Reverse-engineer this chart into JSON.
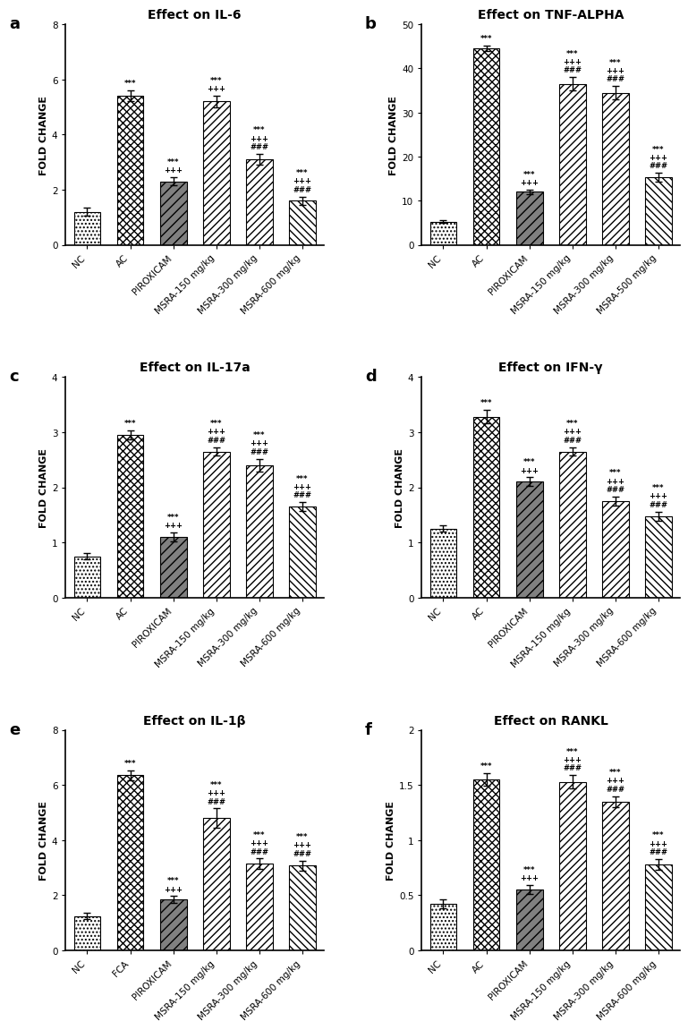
{
  "panels": [
    {
      "label": "a",
      "title": "Effect on IL-6",
      "ylim": [
        0,
        8
      ],
      "yticks": [
        0,
        2,
        4,
        6,
        8
      ],
      "categories": [
        "NC",
        "AC",
        "PIROXICAM",
        "MSRA-150 mg/kg",
        "MSRA-300 mg/kg",
        "MSRA-600 mg/kg"
      ],
      "values": [
        1.2,
        5.4,
        2.3,
        5.2,
        3.1,
        1.6
      ],
      "errors": [
        0.15,
        0.2,
        0.15,
        0.2,
        0.2,
        0.15
      ],
      "annotations": [
        "",
        "***",
        "+++\n***",
        "+++\n***",
        "###\n+++\n***",
        "###\n+++\n***"
      ]
    },
    {
      "label": "b",
      "title": "Effect on TNF-ALPHA",
      "ylim": [
        0,
        50
      ],
      "yticks": [
        0,
        10,
        20,
        30,
        40,
        50
      ],
      "categories": [
        "NC",
        "AC",
        "PIROXICAM",
        "MSRA-150 mg/kg",
        "MSRA-300 mg/kg",
        "MSRA-500 mg/kg"
      ],
      "values": [
        5.2,
        44.5,
        12.0,
        36.5,
        34.5,
        15.3
      ],
      "errors": [
        0.3,
        0.6,
        0.5,
        1.5,
        1.5,
        1.0
      ],
      "annotations": [
        "",
        "***",
        "+++\n***",
        "###\n+++\n***",
        "###\n+++\n***",
        "###\n+++\n***"
      ]
    },
    {
      "label": "c",
      "title": "Effect on IL-17a",
      "ylim": [
        0,
        4
      ],
      "yticks": [
        0,
        1,
        2,
        3,
        4
      ],
      "categories": [
        "NC",
        "AC",
        "PIROXICAM",
        "MSRA-150 mg/kg",
        "MSRA-300 mg/kg",
        "MSRA-600 mg/kg"
      ],
      "values": [
        0.75,
        2.95,
        1.1,
        2.65,
        2.4,
        1.65
      ],
      "errors": [
        0.06,
        0.08,
        0.08,
        0.08,
        0.12,
        0.08
      ],
      "annotations": [
        "",
        "***",
        "+++\n***",
        "###\n+++\n***",
        "###\n+++\n***",
        "###\n+++\n***"
      ]
    },
    {
      "label": "d",
      "title": "Effect on IFN-γ",
      "ylim": [
        0,
        4
      ],
      "yticks": [
        0,
        1,
        2,
        3,
        4
      ],
      "categories": [
        "NC",
        "AC",
        "PIROXICAM",
        "MSRA-150 mg/kg",
        "MSRA-300 mg/kg",
        "MSRA-600 mg/kg"
      ],
      "values": [
        1.25,
        3.28,
        2.1,
        2.65,
        1.75,
        1.48
      ],
      "errors": [
        0.06,
        0.12,
        0.08,
        0.08,
        0.08,
        0.08
      ],
      "annotations": [
        "",
        "***",
        "+++\n***",
        "###\n+++\n***",
        "###\n+++\n***",
        "###\n+++\n***"
      ]
    },
    {
      "label": "e",
      "title": "Effect on IL-1β",
      "ylim": [
        0,
        8
      ],
      "yticks": [
        0,
        2,
        4,
        6,
        8
      ],
      "categories": [
        "NC",
        "FCA",
        "PIROXICAM",
        "MSRA-150 mg/kg",
        "MSRA-300 mg/kg",
        "MSRA-600 mg/kg"
      ],
      "values": [
        1.25,
        6.35,
        1.85,
        4.8,
        3.15,
        3.08
      ],
      "errors": [
        0.12,
        0.18,
        0.12,
        0.35,
        0.18,
        0.18
      ],
      "annotations": [
        "",
        "***",
        "+++\n***",
        "###\n+++\n***",
        "###\n+++\n***",
        "###\n+++\n***"
      ]
    },
    {
      "label": "f",
      "title": "Effect on RANKL",
      "ylim": [
        0,
        2
      ],
      "yticks": [
        0,
        0.5,
        1.0,
        1.5,
        2.0
      ],
      "categories": [
        "NC",
        "AC",
        "PIROXICAM",
        "MSRA-150 mg/kg",
        "MSRA-300 mg/kg",
        "MSRA-600 mg/kg"
      ],
      "values": [
        0.42,
        1.55,
        0.55,
        1.53,
        1.35,
        0.78
      ],
      "errors": [
        0.04,
        0.06,
        0.04,
        0.06,
        0.05,
        0.05
      ],
      "annotations": [
        "",
        "***",
        "+++\n***",
        "###\n+++\n***",
        "###\n+++\n***",
        "###\n+++\n***"
      ]
    }
  ],
  "hatch_patterns": [
    "....",
    "xxxx",
    "///",
    "////",
    "////",
    "\\\\"
  ],
  "bar_facecolors": [
    "white",
    "white",
    "#888888",
    "white",
    "white",
    "white"
  ],
  "bar_edge_colors": [
    "black",
    "black",
    "black",
    "black",
    "black",
    "black"
  ],
  "annotation_fontsize": 6.0,
  "ylabel": "FOLD CHANGE",
  "title_fontsize": 10,
  "axis_label_fontsize": 8,
  "tick_fontsize": 7.5
}
